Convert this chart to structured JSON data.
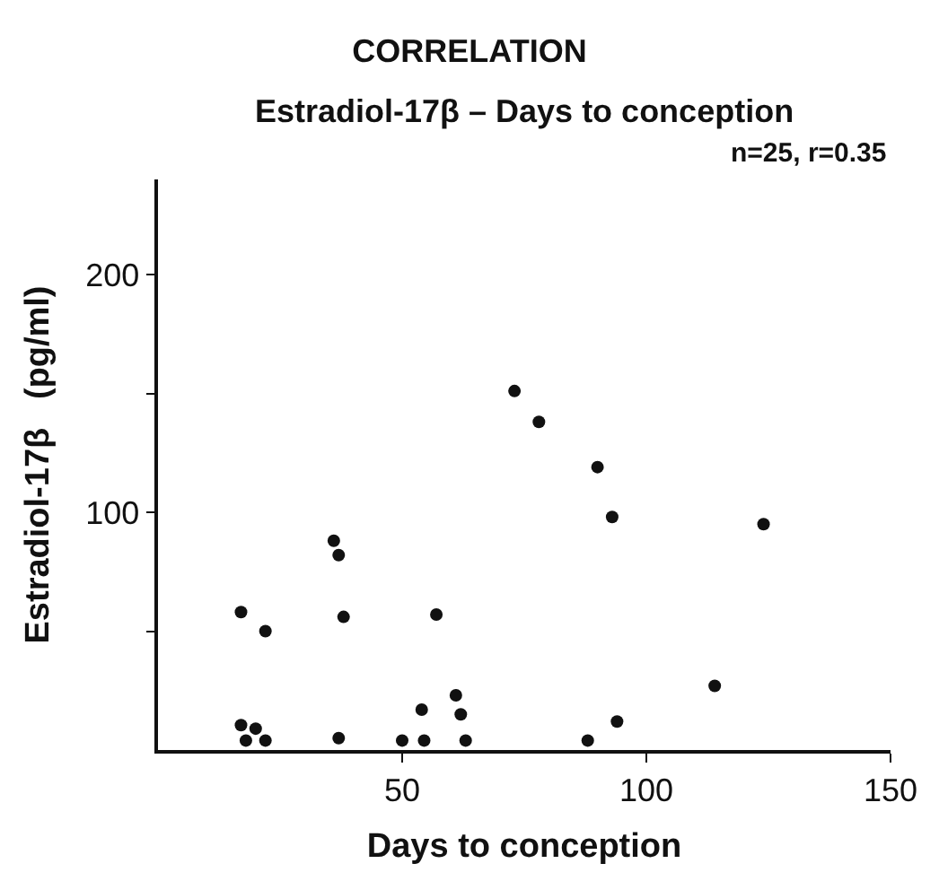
{
  "chart_data": {
    "type": "scatter",
    "title": "CORRELATION",
    "subtitle": "Estradiol-17β – Days to conception",
    "xlabel": "Days to conception",
    "ylabel": "Estradiol-17β   (pg/ml)",
    "annotations": [
      "n=25, r=0.35"
    ],
    "x": [
      17,
      22,
      17,
      20,
      18,
      22,
      36,
      37,
      38,
      37,
      50,
      54.5,
      57,
      61,
      62,
      63,
      54,
      73,
      78,
      90,
      93,
      124,
      114,
      94,
      88
    ],
    "values": [
      58,
      50,
      10.5,
      9,
      4,
      4,
      88,
      82,
      56,
      5,
      4,
      4,
      57,
      23,
      15,
      4,
      17,
      151,
      138,
      119,
      98,
      95,
      27,
      12,
      4
    ],
    "color": "#111111",
    "marker": "circle",
    "xlim": [
      0,
      150
    ],
    "xticks": [
      50,
      100,
      150
    ],
    "ylim": [
      0,
      240
    ],
    "yticks": [
      {
        "value": 50,
        "label": null
      },
      100,
      {
        "value": 150,
        "label": null
      },
      200
    ]
  }
}
